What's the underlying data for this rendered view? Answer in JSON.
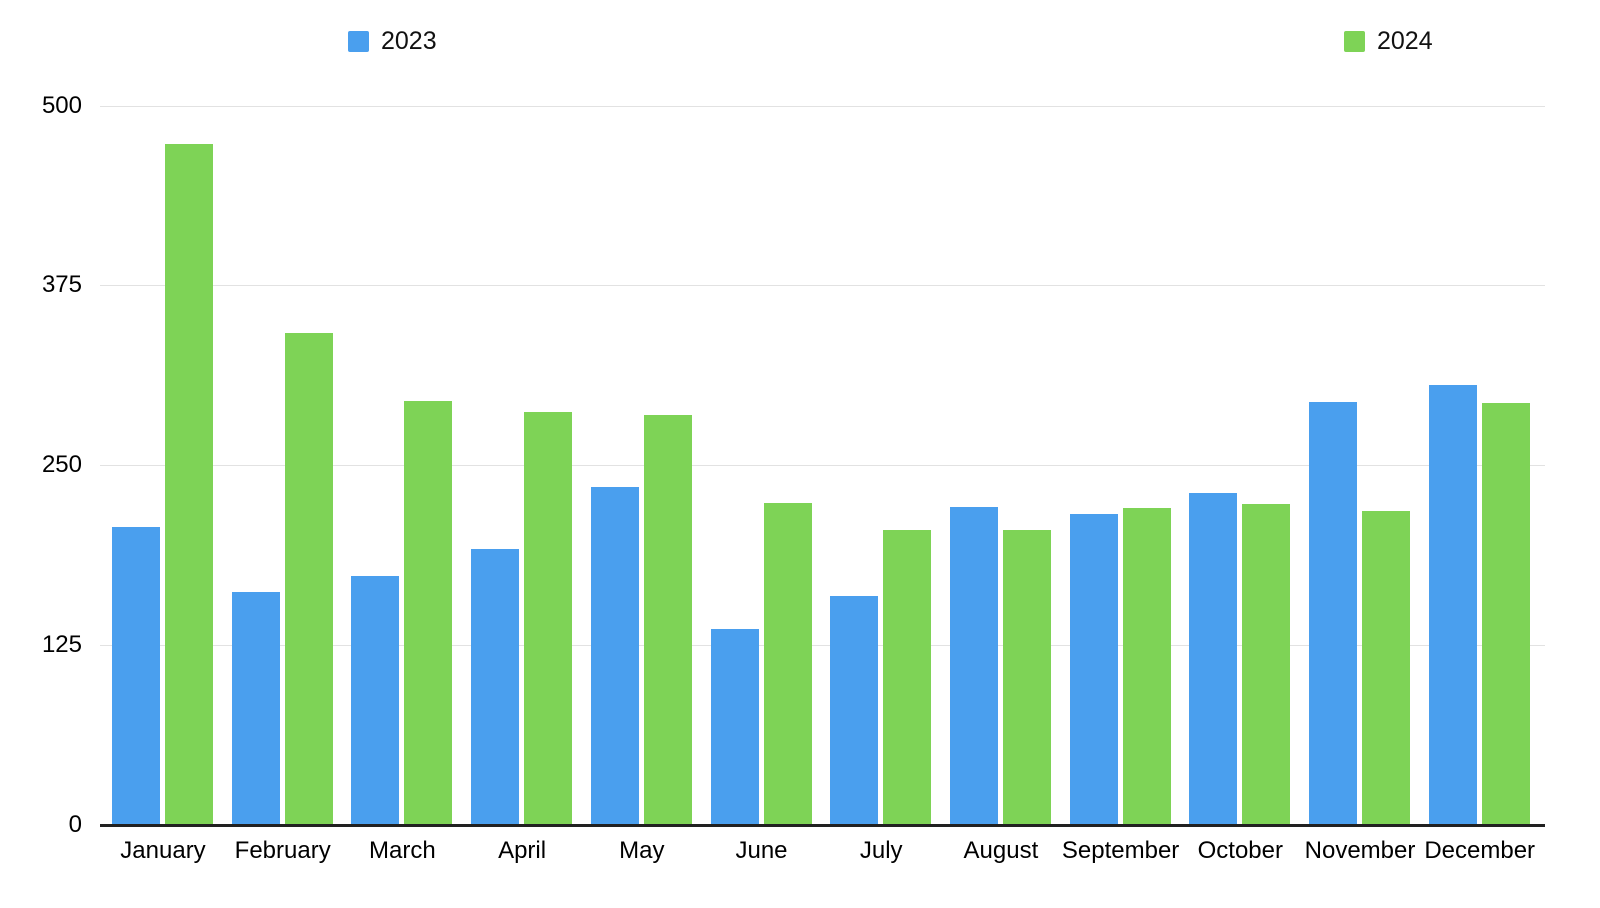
{
  "chart_data": {
    "type": "bar",
    "title": "",
    "xlabel": "",
    "ylabel": "",
    "categories": [
      "January",
      "February",
      "March",
      "April",
      "May",
      "June",
      "July",
      "August",
      "September",
      "October",
      "November",
      "December"
    ],
    "series": [
      {
        "name": "2023",
        "color": "#4A9FEE",
        "values": [
          207,
          162,
          173,
          192,
          235,
          136,
          159,
          221,
          216,
          231,
          294,
          306
        ]
      },
      {
        "name": "2024",
        "color": "#7ED356",
        "values": [
          473,
          342,
          295,
          287,
          285,
          224,
          205,
          205,
          220,
          223,
          218,
          293
        ]
      }
    ],
    "ylim": [
      0,
      500
    ],
    "yticks": [
      0,
      125,
      250,
      375,
      500
    ],
    "grid": true,
    "legend_position": "top",
    "colors": {
      "background": "#ffffff",
      "gridline": "#e2e2e2",
      "axis_line": "#212121",
      "text": "#000000"
    }
  }
}
